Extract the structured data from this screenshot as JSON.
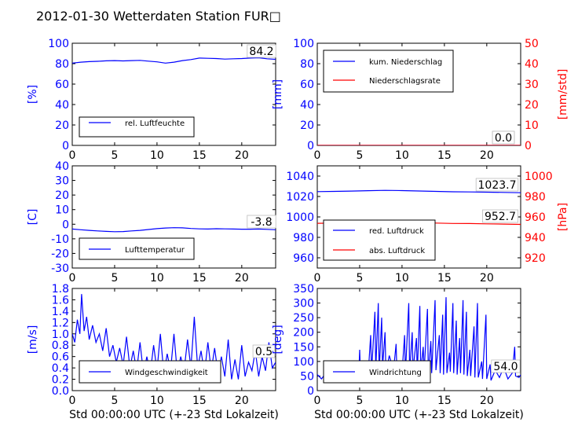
{
  "title": "2012-01-30 Wetterdaten Station FUR□",
  "colors": {
    "blue": "#0000ff",
    "red": "#ff0000",
    "black": "#000000"
  },
  "chart_data": [
    {
      "id": "humidity",
      "type": "line",
      "ylabel": "[%]",
      "xlabel": "",
      "xlim": [
        0,
        24
      ],
      "ylim": [
        0,
        100
      ],
      "xticks": [
        0,
        5,
        10,
        15,
        20
      ],
      "yticks": [
        0,
        20,
        40,
        60,
        80,
        100
      ],
      "series": [
        {
          "name": "rel. Luftfeuchte",
          "color": "#0000ff",
          "axis": "left",
          "points": [
            [
              0,
              80.5
            ],
            [
              1,
              81.5
            ],
            [
              2,
              82
            ],
            [
              3,
              82.3
            ],
            [
              4,
              82.8
            ],
            [
              5,
              83
            ],
            [
              6,
              82.7
            ],
            [
              7,
              83
            ],
            [
              8,
              83.2
            ],
            [
              9,
              82.5
            ],
            [
              10,
              81.8
            ],
            [
              11,
              80.5
            ],
            [
              12,
              81.5
            ],
            [
              13,
              83
            ],
            [
              14,
              84
            ],
            [
              15,
              85.5
            ],
            [
              16,
              85.2
            ],
            [
              17,
              85
            ],
            [
              18,
              84.5
            ],
            [
              19,
              84.8
            ],
            [
              20,
              85
            ],
            [
              21,
              85.5
            ],
            [
              22,
              85.8
            ],
            [
              23,
              84.8
            ],
            [
              24,
              84.2
            ]
          ]
        }
      ],
      "last_value": "84.2",
      "legend": "bottom-left"
    },
    {
      "id": "precipitation",
      "type": "line",
      "ylabel": "[mm]",
      "ylabel_right": "[mm/std]",
      "xlabel": "",
      "xlim": [
        0,
        24
      ],
      "ylim": [
        0,
        100
      ],
      "ylim_right": [
        0,
        50
      ],
      "xticks": [
        0,
        5,
        10,
        15,
        20
      ],
      "yticks": [
        0,
        20,
        40,
        60,
        80,
        100
      ],
      "yticks_right": [
        0,
        10,
        20,
        30,
        40,
        50
      ],
      "series": [
        {
          "name": "kum. Niederschlag",
          "color": "#0000ff",
          "axis": "left",
          "points": [
            [
              0,
              0
            ],
            [
              24,
              0
            ]
          ]
        },
        {
          "name": "Niederschlagsrate",
          "color": "#ff0000",
          "axis": "right",
          "points": [
            [
              0,
              0
            ],
            [
              24,
              0
            ]
          ]
        }
      ],
      "last_values": [
        "0.0",
        "0.0"
      ],
      "legend": "top-left"
    },
    {
      "id": "temperature",
      "type": "line",
      "ylabel": "[C]",
      "xlabel": "",
      "xlim": [
        0,
        24
      ],
      "ylim": [
        -30,
        40
      ],
      "xticks": [
        0,
        5,
        10,
        15,
        20
      ],
      "yticks": [
        -30,
        -20,
        -10,
        0,
        10,
        20,
        30,
        40
      ],
      "series": [
        {
          "name": "Lufttemperatur",
          "color": "#0000ff",
          "axis": "left",
          "points": [
            [
              0,
              -3.3
            ],
            [
              1,
              -3.8
            ],
            [
              2,
              -4.2
            ],
            [
              3,
              -4.6
            ],
            [
              4,
              -4.9
            ],
            [
              5,
              -5.1
            ],
            [
              6,
              -5
            ],
            [
              7,
              -4.6
            ],
            [
              8,
              -4.2
            ],
            [
              9,
              -3.6
            ],
            [
              10,
              -3
            ],
            [
              11,
              -2.6
            ],
            [
              12,
              -2.4
            ],
            [
              13,
              -2.5
            ],
            [
              14,
              -2.9
            ],
            [
              15,
              -3.2
            ],
            [
              16,
              -3.3
            ],
            [
              17,
              -3.1
            ],
            [
              18,
              -3.2
            ],
            [
              19,
              -3.3
            ],
            [
              20,
              -3.4
            ],
            [
              21,
              -3.4
            ],
            [
              22,
              -3.3
            ],
            [
              23,
              -3.5
            ],
            [
              24,
              -3.8
            ]
          ]
        }
      ],
      "last_value": "-3.8",
      "legend": "bottom-left"
    },
    {
      "id": "pressure",
      "type": "line",
      "ylabel": "",
      "ylabel_right": "[hPa]",
      "xlabel": "",
      "xlim": [
        0,
        24
      ],
      "ylim": [
        950,
        1050
      ],
      "ylim_right": [
        910,
        1010
      ],
      "xticks": [
        0,
        5,
        10,
        15,
        20
      ],
      "yticks": [
        960,
        980,
        1000,
        1020,
        1040
      ],
      "yticks_right": [
        920,
        940,
        960,
        980,
        1000
      ],
      "series": [
        {
          "name": "red. Luftdruck",
          "color": "#0000ff",
          "axis": "left",
          "points": [
            [
              0,
              1024.8
            ],
            [
              2,
              1025
            ],
            [
              4,
              1025.3
            ],
            [
              6,
              1025.7
            ],
            [
              8,
              1026
            ],
            [
              10,
              1025.8
            ],
            [
              12,
              1025.4
            ],
            [
              14,
              1025
            ],
            [
              16,
              1024.6
            ],
            [
              18,
              1024.5
            ],
            [
              20,
              1024.2
            ],
            [
              22,
              1024
            ],
            [
              24,
              1023.7
            ]
          ]
        },
        {
          "name": "abs. Luftdruck",
          "color": "#ff0000",
          "axis": "right",
          "points": [
            [
              0,
              953.8
            ],
            [
              2,
              954
            ],
            [
              4,
              954.3
            ],
            [
              6,
              954.6
            ],
            [
              8,
              954.9
            ],
            [
              10,
              954.7
            ],
            [
              12,
              954.3
            ],
            [
              14,
              954
            ],
            [
              16,
              953.6
            ],
            [
              18,
              953.5
            ],
            [
              20,
              953.2
            ],
            [
              22,
              953
            ],
            [
              24,
              952.7
            ]
          ]
        }
      ],
      "last_values": [
        "1023.7",
        "952.7"
      ],
      "legend": "bottom-left"
    },
    {
      "id": "wind_speed",
      "type": "line",
      "ylabel": "[m/s]",
      "xlabel": "Std 00:00:00 UTC (+-23 Std Lokalzeit)",
      "xlim": [
        0,
        24
      ],
      "ylim": [
        0,
        1.8
      ],
      "xticks": [
        0,
        5,
        10,
        15,
        20
      ],
      "yticks": [
        0.0,
        0.2,
        0.4,
        0.6,
        0.8,
        1.0,
        1.2,
        1.4,
        1.6,
        1.8
      ],
      "series": [
        {
          "name": "Windgeschwindigkeit",
          "color": "#0000ff",
          "axis": "left",
          "points": [
            [
              0,
              1.0
            ],
            [
              0.3,
              0.85
            ],
            [
              0.6,
              1.25
            ],
            [
              0.9,
              1.0
            ],
            [
              1.1,
              1.7
            ],
            [
              1.4,
              1.05
            ],
            [
              1.7,
              1.3
            ],
            [
              2,
              0.9
            ],
            [
              2.4,
              1.15
            ],
            [
              2.8,
              0.85
            ],
            [
              3.2,
              1.0
            ],
            [
              3.6,
              0.7
            ],
            [
              4,
              1.1
            ],
            [
              4.4,
              0.6
            ],
            [
              4.8,
              0.8
            ],
            [
              5.2,
              0.5
            ],
            [
              5.6,
              0.75
            ],
            [
              6,
              0.45
            ],
            [
              6.4,
              0.95
            ],
            [
              6.8,
              0.4
            ],
            [
              7.2,
              0.7
            ],
            [
              7.6,
              0.35
            ],
            [
              8,
              0.85
            ],
            [
              8.4,
              0.3
            ],
            [
              8.8,
              0.6
            ],
            [
              9.2,
              0.3
            ],
            [
              9.6,
              0.8
            ],
            [
              10,
              0.35
            ],
            [
              10.4,
              1.0
            ],
            [
              10.8,
              0.3
            ],
            [
              11.2,
              0.65
            ],
            [
              11.6,
              0.35
            ],
            [
              12,
              1.0
            ],
            [
              12.4,
              0.3
            ],
            [
              12.8,
              0.6
            ],
            [
              13.2,
              0.35
            ],
            [
              13.6,
              0.9
            ],
            [
              14,
              0.4
            ],
            [
              14.4,
              1.3
            ],
            [
              14.8,
              0.4
            ],
            [
              15.2,
              0.7
            ],
            [
              15.6,
              0.3
            ],
            [
              16,
              0.85
            ],
            [
              16.4,
              0.35
            ],
            [
              16.8,
              0.75
            ],
            [
              17.2,
              0.3
            ],
            [
              17.6,
              0.6
            ],
            [
              18,
              0.25
            ],
            [
              18.4,
              0.9
            ],
            [
              18.8,
              0.2
            ],
            [
              19.2,
              0.55
            ],
            [
              19.6,
              0.2
            ],
            [
              20,
              0.8
            ],
            [
              20.4,
              0.25
            ],
            [
              20.8,
              0.5
            ],
            [
              21.2,
              0.35
            ],
            [
              21.6,
              0.7
            ],
            [
              22,
              0.25
            ],
            [
              22.4,
              0.6
            ],
            [
              22.8,
              0.35
            ],
            [
              23.2,
              0.85
            ],
            [
              23.6,
              0.4
            ],
            [
              24,
              0.5
            ]
          ]
        }
      ],
      "last_value": "0.5",
      "legend": "bottom-left"
    },
    {
      "id": "wind_direction",
      "type": "line",
      "ylabel": "[deg]",
      "xlabel": "Std 00:00:00 UTC (+-23 Std Lokalzeit)",
      "xlim": [
        0,
        24
      ],
      "ylim": [
        0,
        350
      ],
      "xticks": [
        0,
        5,
        10,
        15,
        20
      ],
      "yticks": [
        0,
        50,
        100,
        150,
        200,
        250,
        300,
        350
      ],
      "series": [
        {
          "name": "Windrichtung",
          "color": "#0000ff",
          "axis": "left",
          "points": [
            [
              0,
              55
            ],
            [
              0.5,
              40
            ],
            [
              1,
              60
            ],
            [
              1.5,
              45
            ],
            [
              2,
              65
            ],
            [
              2.5,
              50
            ],
            [
              3,
              60
            ],
            [
              3.5,
              45
            ],
            [
              4,
              55
            ],
            [
              4.5,
              50
            ],
            [
              4.9,
              60
            ],
            [
              5,
              140
            ],
            [
              5.1,
              60
            ],
            [
              5.5,
              70
            ],
            [
              6,
              55
            ],
            [
              6.3,
              190
            ],
            [
              6.4,
              60
            ],
            [
              6.8,
              270
            ],
            [
              6.9,
              70
            ],
            [
              7.2,
              300
            ],
            [
              7.3,
              60
            ],
            [
              7.6,
              250
            ],
            [
              7.7,
              80
            ],
            [
              8,
              200
            ],
            [
              8.1,
              60
            ],
            [
              8.5,
              120
            ],
            [
              9,
              70
            ],
            [
              9.3,
              160
            ],
            [
              9.4,
              60
            ],
            [
              9.8,
              90
            ],
            [
              10,
              60
            ],
            [
              10.3,
              190
            ],
            [
              10.4,
              55
            ],
            [
              10.8,
              300
            ],
            [
              10.9,
              60
            ],
            [
              11.2,
              200
            ],
            [
              11.3,
              70
            ],
            [
              11.7,
              180
            ],
            [
              11.8,
              60
            ],
            [
              12.1,
              290
            ],
            [
              12.2,
              65
            ],
            [
              12.5,
              150
            ],
            [
              12.6,
              60
            ],
            [
              13,
              280
            ],
            [
              13.1,
              55
            ],
            [
              13.4,
              170
            ],
            [
              13.5,
              60
            ],
            [
              13.9,
              310
            ],
            [
              14,
              70
            ],
            [
              14.4,
              190
            ],
            [
              14.5,
              60
            ],
            [
              14.8,
              260
            ],
            [
              14.9,
              55
            ],
            [
              15.2,
              320
            ],
            [
              15.3,
              60
            ],
            [
              15.6,
              130
            ],
            [
              15.7,
              65
            ],
            [
              16,
              300
            ],
            [
              16.1,
              60
            ],
            [
              16.4,
              240
            ],
            [
              16.5,
              55
            ],
            [
              16.8,
              180
            ],
            [
              16.9,
              60
            ],
            [
              17.2,
              310
            ],
            [
              17.3,
              55
            ],
            [
              17.6,
              270
            ],
            [
              17.7,
              50
            ],
            [
              18,
              140
            ],
            [
              18.1,
              50
            ],
            [
              18.5,
              220
            ],
            [
              18.6,
              45
            ],
            [
              18.9,
              300
            ],
            [
              19,
              45
            ],
            [
              19.4,
              100
            ],
            [
              19.5,
              40
            ],
            [
              19.9,
              260
            ],
            [
              20,
              40
            ],
            [
              20.4,
              90
            ],
            [
              20.5,
              35
            ],
            [
              21,
              70
            ],
            [
              21.5,
              45
            ],
            [
              22,
              80
            ],
            [
              22.5,
              40
            ],
            [
              23,
              60
            ],
            [
              23.3,
              150
            ],
            [
              23.4,
              50
            ],
            [
              23.8,
              45
            ],
            [
              24,
              54
            ]
          ]
        }
      ],
      "last_value": "54.0",
      "legend": "bottom-left"
    }
  ]
}
